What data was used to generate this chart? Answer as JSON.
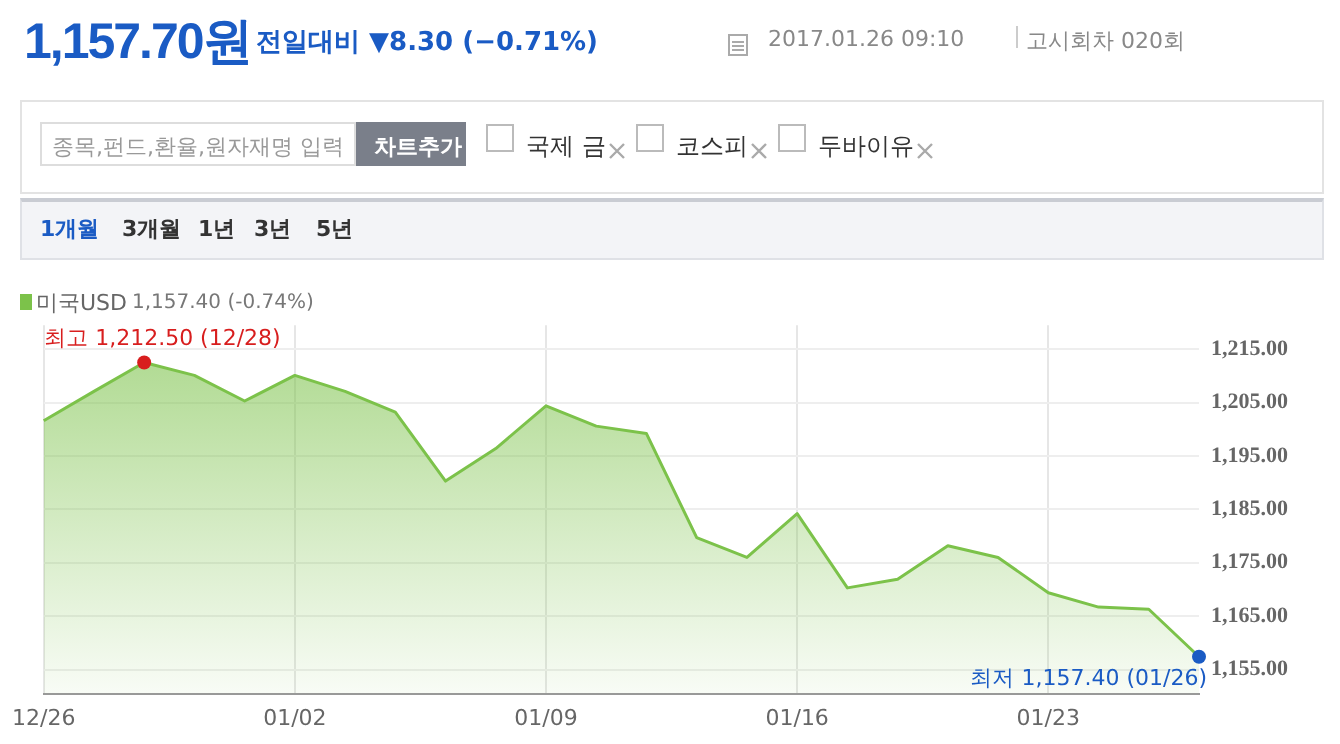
{
  "chart_data": {
    "type": "area",
    "title": "1,157.70원",
    "subtitle": "전일대비 ▼8.30 (−0.71%)",
    "categories": [
      "12/26",
      null,
      null,
      null,
      null,
      "01/02",
      null,
      null,
      null,
      null,
      "01/09",
      null,
      null,
      null,
      null,
      "01/16",
      null,
      null,
      null,
      null,
      "01/23",
      null,
      null,
      null
    ],
    "series": [
      {
        "name": "미국USD",
        "color": "#7cc24a",
        "values": [
          1201.6,
          1207.1,
          1212.5,
          1210.1,
          1205.3,
          1210.1,
          1207.1,
          1203.2,
          1190.3,
          1196.4,
          1204.4,
          1200.6,
          1199.2,
          1179.7,
          1176.0,
          1184.2,
          1170.3,
          1171.9,
          1178.2,
          1176.0,
          1169.4,
          1166.7,
          1166.3,
          1157.4
        ]
      }
    ],
    "ylim": [
      1150.5,
      1219.5
    ],
    "yticks": [
      {
        "value": 1155,
        "label": "1,155.00"
      },
      {
        "value": 1165,
        "label": "1,165.00"
      },
      {
        "value": 1175,
        "label": "1,175.00"
      },
      {
        "value": 1185,
        "label": "1,185.00"
      },
      {
        "value": 1195,
        "label": "1,195.00"
      },
      {
        "value": 1205,
        "label": "1,205.00"
      },
      {
        "value": 1215,
        "label": "1,215.00"
      }
    ],
    "grid": true,
    "legend": "top left",
    "marker": "none",
    "annotations": [
      "2017.01.26 09:10",
      "고시회차 020회",
      "종목,펀드,환율,원자재명 입력",
      "차트추가",
      "국제 금",
      "코스피",
      "두바이유",
      "1개월",
      "3개월",
      "1년",
      "3년",
      "5년",
      "1,157.40 (-0.74%)",
      "최고 1,212.50 (12/28)",
      "최저 1,157.40 (01/26)"
    ]
  }
}
